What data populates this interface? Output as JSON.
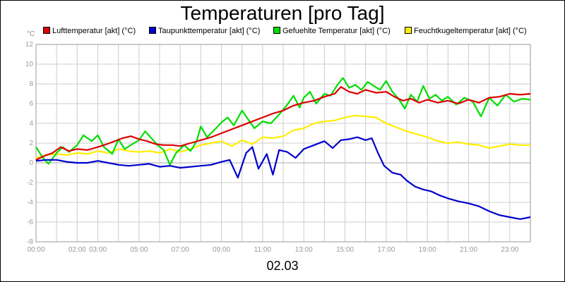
{
  "colors": {
    "background": "#ffffff",
    "grid": "#cccccc",
    "axis": "#999999",
    "tick_text": "#9a9a9a",
    "zero_line": "#bbbbbb"
  },
  "chart_data": {
    "type": "line",
    "title": "Temperaturen [pro Tag]",
    "xlabel": "02.03",
    "ylabel": "°C",
    "ylim": [
      -8,
      12
    ],
    "xlim": [
      0,
      24
    ],
    "grid": true,
    "legend_placement": "top",
    "y_ticks": [
      "-8",
      "-6",
      "-4",
      "-2",
      "0",
      "2",
      "4",
      "6",
      "8",
      "10",
      "12"
    ],
    "x_ticks": [
      {
        "hour": 0,
        "label": "00:00"
      },
      {
        "hour": 2,
        "label": "02:00"
      },
      {
        "hour": 3,
        "label": "03:00"
      },
      {
        "hour": 5,
        "label": "05:00"
      },
      {
        "hour": 7,
        "label": "07:00"
      },
      {
        "hour": 9,
        "label": "09:00"
      },
      {
        "hour": 11,
        "label": "11:00"
      },
      {
        "hour": 13,
        "label": "13:00"
      },
      {
        "hour": 15,
        "label": "15:00"
      },
      {
        "hour": 17,
        "label": "17:00"
      },
      {
        "hour": 19,
        "label": "19:00"
      },
      {
        "hour": 21,
        "label": "21:00"
      },
      {
        "hour": 23,
        "label": "23:00"
      }
    ],
    "series": [
      {
        "name": "Lufttemperatur [akt] (°C)",
        "color": "#dd0000",
        "points": [
          [
            0,
            0.3
          ],
          [
            0.4,
            0.7
          ],
          [
            0.8,
            1.0
          ],
          [
            1.2,
            1.6
          ],
          [
            1.6,
            1.2
          ],
          [
            2.0,
            1.4
          ],
          [
            2.5,
            1.3
          ],
          [
            3.0,
            1.6
          ],
          [
            3.3,
            1.8
          ],
          [
            3.7,
            2.1
          ],
          [
            4.2,
            2.5
          ],
          [
            4.6,
            2.7
          ],
          [
            5.0,
            2.4
          ],
          [
            5.4,
            2.2
          ],
          [
            5.8,
            1.9
          ],
          [
            6.2,
            1.8
          ],
          [
            6.6,
            1.8
          ],
          [
            7.0,
            1.7
          ],
          [
            7.5,
            2.0
          ],
          [
            8.0,
            2.3
          ],
          [
            8.5,
            2.6
          ],
          [
            9.0,
            3.0
          ],
          [
            9.5,
            3.4
          ],
          [
            10.0,
            3.8
          ],
          [
            10.5,
            4.2
          ],
          [
            11.0,
            4.6
          ],
          [
            11.5,
            5.0
          ],
          [
            12.0,
            5.3
          ],
          [
            12.5,
            5.8
          ],
          [
            13.0,
            6.1
          ],
          [
            13.5,
            6.3
          ],
          [
            14.0,
            6.7
          ],
          [
            14.5,
            7.0
          ],
          [
            14.8,
            7.7
          ],
          [
            15.2,
            7.2
          ],
          [
            15.6,
            7.0
          ],
          [
            16.0,
            7.4
          ],
          [
            16.5,
            7.1
          ],
          [
            17.0,
            7.2
          ],
          [
            17.4,
            6.7
          ],
          [
            17.8,
            6.3
          ],
          [
            18.2,
            6.5
          ],
          [
            18.6,
            6.1
          ],
          [
            19.0,
            6.4
          ],
          [
            19.5,
            6.1
          ],
          [
            20.0,
            6.3
          ],
          [
            20.5,
            6.0
          ],
          [
            21.0,
            6.4
          ],
          [
            21.5,
            6.1
          ],
          [
            22.0,
            6.6
          ],
          [
            22.5,
            6.7
          ],
          [
            23.0,
            7.0
          ],
          [
            23.5,
            6.9
          ],
          [
            24.0,
            7.0
          ]
        ]
      },
      {
        "name": "Taupunkttemperatur [akt] (°C)",
        "color": "#0000cc",
        "points": [
          [
            0,
            0.2
          ],
          [
            0.5,
            0.3
          ],
          [
            1.0,
            0.3
          ],
          [
            1.5,
            0.1
          ],
          [
            2.0,
            0.0
          ],
          [
            2.5,
            0.0
          ],
          [
            3.0,
            0.2
          ],
          [
            3.5,
            0.0
          ],
          [
            4.0,
            -0.2
          ],
          [
            4.5,
            -0.3
          ],
          [
            5.0,
            -0.2
          ],
          [
            5.5,
            -0.1
          ],
          [
            6.0,
            -0.4
          ],
          [
            6.5,
            -0.3
          ],
          [
            7.0,
            -0.5
          ],
          [
            7.5,
            -0.4
          ],
          [
            8.0,
            -0.3
          ],
          [
            8.5,
            -0.2
          ],
          [
            9.0,
            0.1
          ],
          [
            9.4,
            0.3
          ],
          [
            9.8,
            -1.5
          ],
          [
            10.2,
            1.0
          ],
          [
            10.5,
            1.6
          ],
          [
            10.8,
            -0.6
          ],
          [
            11.2,
            0.9
          ],
          [
            11.5,
            -1.2
          ],
          [
            11.8,
            1.3
          ],
          [
            12.2,
            1.1
          ],
          [
            12.6,
            0.5
          ],
          [
            13.0,
            1.4
          ],
          [
            13.5,
            1.8
          ],
          [
            14.0,
            2.2
          ],
          [
            14.4,
            1.5
          ],
          [
            14.8,
            2.3
          ],
          [
            15.2,
            2.4
          ],
          [
            15.6,
            2.6
          ],
          [
            16.0,
            2.3
          ],
          [
            16.3,
            2.5
          ],
          [
            16.6,
            1.0
          ],
          [
            16.9,
            -0.3
          ],
          [
            17.3,
            -1.0
          ],
          [
            17.7,
            -1.2
          ],
          [
            18.0,
            -1.8
          ],
          [
            18.4,
            -2.4
          ],
          [
            18.8,
            -2.7
          ],
          [
            19.2,
            -2.9
          ],
          [
            19.6,
            -3.3
          ],
          [
            20.0,
            -3.6
          ],
          [
            20.5,
            -3.9
          ],
          [
            21.0,
            -4.1
          ],
          [
            21.5,
            -4.4
          ],
          [
            22.0,
            -4.9
          ],
          [
            22.5,
            -5.3
          ],
          [
            23.0,
            -5.5
          ],
          [
            23.5,
            -5.7
          ],
          [
            24.0,
            -5.5
          ]
        ]
      },
      {
        "name": "Gefuehlte Temperatur [akt] (°C)",
        "color": "#00dd00",
        "points": [
          [
            0,
            1.6
          ],
          [
            0.3,
            0.6
          ],
          [
            0.6,
            -0.1
          ],
          [
            1.0,
            1.0
          ],
          [
            1.3,
            1.6
          ],
          [
            1.6,
            1.1
          ],
          [
            2.0,
            1.8
          ],
          [
            2.3,
            2.8
          ],
          [
            2.7,
            2.2
          ],
          [
            3.0,
            2.8
          ],
          [
            3.3,
            1.6
          ],
          [
            3.7,
            0.9
          ],
          [
            4.0,
            2.4
          ],
          [
            4.3,
            1.4
          ],
          [
            4.6,
            1.8
          ],
          [
            5.0,
            2.3
          ],
          [
            5.3,
            3.2
          ],
          [
            5.6,
            2.5
          ],
          [
            5.9,
            1.8
          ],
          [
            6.2,
            1.3
          ],
          [
            6.5,
            -0.2
          ],
          [
            6.8,
            1.0
          ],
          [
            7.2,
            1.8
          ],
          [
            7.5,
            1.2
          ],
          [
            7.8,
            2.2
          ],
          [
            8.0,
            3.7
          ],
          [
            8.3,
            2.6
          ],
          [
            8.6,
            3.2
          ],
          [
            9.0,
            4.1
          ],
          [
            9.3,
            4.6
          ],
          [
            9.6,
            3.8
          ],
          [
            10.0,
            5.3
          ],
          [
            10.3,
            4.4
          ],
          [
            10.6,
            3.5
          ],
          [
            11.0,
            4.2
          ],
          [
            11.4,
            4.0
          ],
          [
            11.8,
            4.9
          ],
          [
            12.2,
            5.9
          ],
          [
            12.5,
            6.8
          ],
          [
            12.8,
            5.6
          ],
          [
            13.0,
            6.6
          ],
          [
            13.3,
            7.2
          ],
          [
            13.6,
            6.0
          ],
          [
            14.0,
            7.0
          ],
          [
            14.3,
            6.8
          ],
          [
            14.6,
            7.8
          ],
          [
            14.9,
            8.6
          ],
          [
            15.2,
            7.6
          ],
          [
            15.5,
            7.9
          ],
          [
            15.8,
            7.4
          ],
          [
            16.1,
            8.2
          ],
          [
            16.4,
            7.8
          ],
          [
            16.7,
            7.4
          ],
          [
            17.0,
            8.3
          ],
          [
            17.3,
            7.2
          ],
          [
            17.6,
            6.5
          ],
          [
            17.9,
            5.5
          ],
          [
            18.2,
            6.9
          ],
          [
            18.5,
            6.2
          ],
          [
            18.8,
            7.8
          ],
          [
            19.1,
            6.5
          ],
          [
            19.4,
            6.9
          ],
          [
            19.7,
            6.3
          ],
          [
            20.0,
            6.7
          ],
          [
            20.4,
            5.9
          ],
          [
            20.8,
            6.6
          ],
          [
            21.2,
            6.2
          ],
          [
            21.6,
            4.7
          ],
          [
            22.0,
            6.6
          ],
          [
            22.4,
            5.8
          ],
          [
            22.8,
            6.9
          ],
          [
            23.2,
            6.2
          ],
          [
            23.6,
            6.5
          ],
          [
            24.0,
            6.4
          ]
        ]
      },
      {
        "name": "Feuchtkugeltemperatur [akt] (°C)",
        "color": "#ffee00",
        "points": [
          [
            0,
            0.5
          ],
          [
            0.5,
            0.8
          ],
          [
            1.0,
            0.9
          ],
          [
            1.5,
            0.8
          ],
          [
            2.0,
            1.0
          ],
          [
            2.5,
            0.9
          ],
          [
            3.0,
            1.2
          ],
          [
            3.5,
            1.0
          ],
          [
            4.0,
            1.4
          ],
          [
            4.5,
            1.2
          ],
          [
            5.0,
            1.1
          ],
          [
            5.5,
            1.2
          ],
          [
            6.0,
            1.0
          ],
          [
            6.5,
            1.4
          ],
          [
            7.0,
            1.1
          ],
          [
            7.5,
            1.4
          ],
          [
            8.0,
            1.8
          ],
          [
            8.5,
            2.0
          ],
          [
            9.0,
            2.2
          ],
          [
            9.5,
            1.7
          ],
          [
            10.0,
            2.3
          ],
          [
            10.5,
            1.9
          ],
          [
            11.0,
            2.6
          ],
          [
            11.5,
            2.5
          ],
          [
            12.0,
            2.7
          ],
          [
            12.5,
            3.3
          ],
          [
            13.0,
            3.5
          ],
          [
            13.5,
            4.0
          ],
          [
            14.0,
            4.2
          ],
          [
            14.5,
            4.3
          ],
          [
            15.0,
            4.6
          ],
          [
            15.5,
            4.8
          ],
          [
            16.0,
            4.7
          ],
          [
            16.5,
            4.6
          ],
          [
            17.0,
            4.0
          ],
          [
            17.5,
            3.6
          ],
          [
            18.0,
            3.2
          ],
          [
            18.5,
            2.9
          ],
          [
            19.0,
            2.6
          ],
          [
            19.5,
            2.2
          ],
          [
            20.0,
            2.0
          ],
          [
            20.5,
            2.1
          ],
          [
            21.0,
            1.9
          ],
          [
            21.5,
            1.8
          ],
          [
            22.0,
            1.5
          ],
          [
            22.5,
            1.7
          ],
          [
            23.0,
            1.9
          ],
          [
            23.5,
            1.8
          ],
          [
            24.0,
            1.8
          ]
        ]
      }
    ]
  }
}
